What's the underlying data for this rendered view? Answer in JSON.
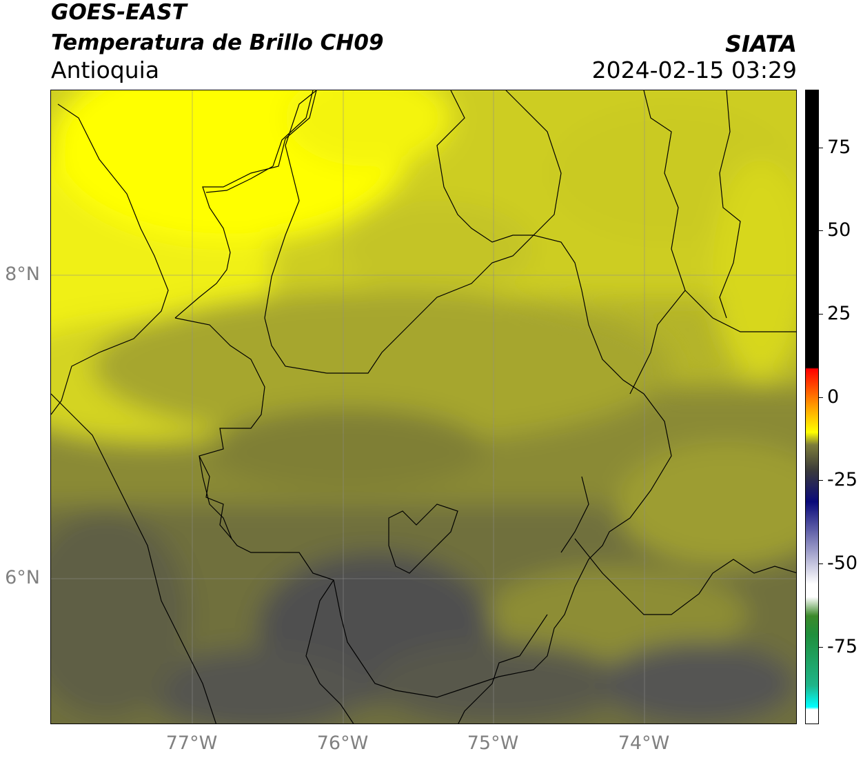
{
  "header": {
    "line1": "GOES-EAST",
    "line2": "Temperatura de Brillo CH09",
    "line3": "Antioquia",
    "org": "SIATA",
    "timestamp": "2024-02-15 03:29"
  },
  "axes": {
    "lat_labels": [
      "8°N",
      "6°N"
    ],
    "lon_labels": [
      "77°W",
      "76°W",
      "75°W",
      "74°W"
    ]
  },
  "colorbar": {
    "ticks": [
      "75",
      "50",
      "25",
      "0",
      "-25",
      "-50",
      "-75"
    ],
    "stops": [
      "#00ffff",
      "#1f8f3c",
      "#ffffff",
      "#0a0a7a",
      "#3b3b3b",
      "#ffff00",
      "#ff8c00",
      "#ff0000",
      "#000000"
    ]
  },
  "map_colors": {
    "bright_yellow": "#ffff00",
    "yellow": "#e6e61a",
    "olive_light": "#c8c823",
    "olive": "#a8a82c",
    "olive_dark": "#7d7d34",
    "gray_olive": "#636345",
    "dark_gray": "#4d4d4d"
  }
}
